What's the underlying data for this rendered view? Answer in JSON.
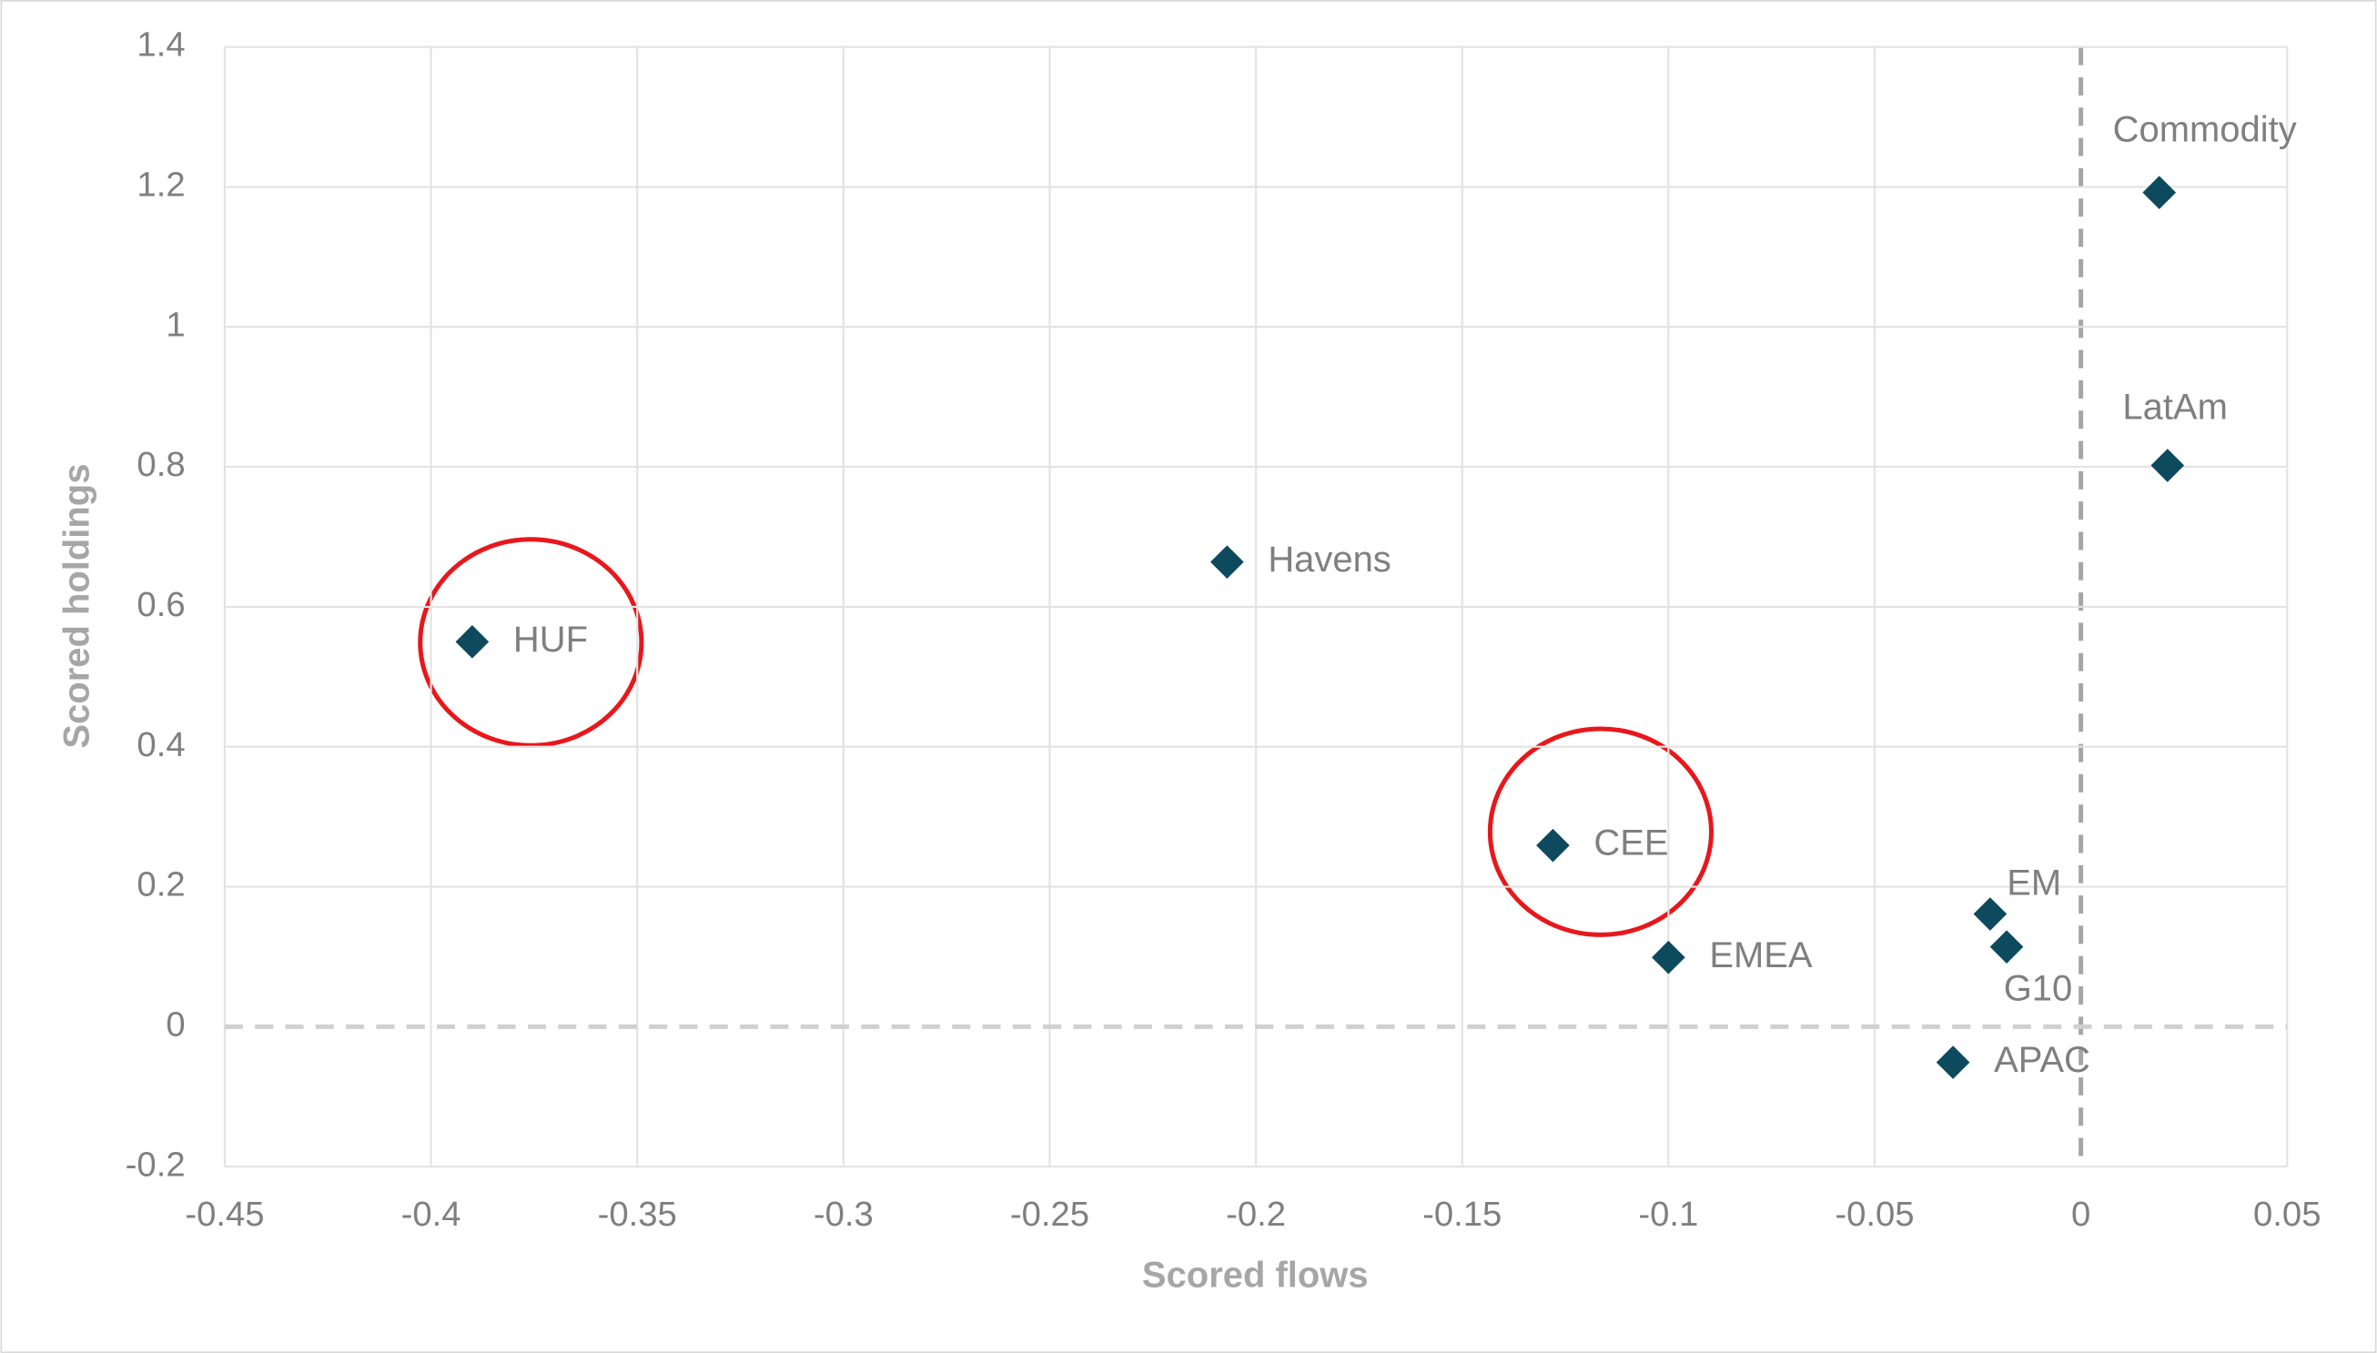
{
  "chart_data": {
    "type": "scatter",
    "x_label": "Scored flows",
    "y_label": "Scored holdings",
    "xlim": [
      -0.45,
      0.05
    ],
    "xticks": [
      -0.45,
      -0.4,
      -0.35,
      -0.3,
      -0.25,
      -0.2,
      -0.15,
      -0.1,
      -0.05,
      0,
      0.05
    ],
    "ylim": [
      -0.2,
      1.4
    ],
    "yticks": [
      -0.2,
      0,
      0.2,
      0.4,
      0.6,
      0.8,
      1,
      1.2,
      1.4
    ],
    "grid": true,
    "color": "#0d4a5e",
    "labels": [
      "HUF",
      "Havens",
      "CEE",
      "EMEA",
      "EM",
      "G10",
      "APAC",
      "Commodity",
      "LatAm"
    ],
    "x": [
      -0.39,
      -0.207,
      -0.128,
      -0.1,
      -0.022,
      -0.018,
      -0.031,
      0.019,
      0.021
    ],
    "y": [
      0.55,
      0.664,
      0.259,
      0.099,
      0.161,
      0.114,
      -0.051,
      1.192,
      0.802
    ]
  }
}
